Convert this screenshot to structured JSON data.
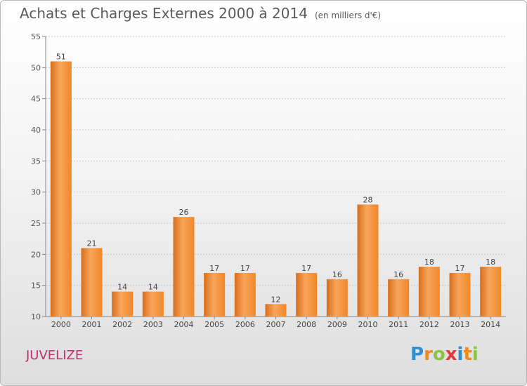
{
  "title": "Achats et Charges Externes 2000 à 2014",
  "unit_note": "(en milliers d'€)",
  "commune": "JUVELIZE",
  "logo": {
    "text": "Proxiti",
    "letters": [
      "P",
      "r",
      "o",
      "x",
      "i",
      "t",
      "i"
    ],
    "colors": [
      "#2f8fce",
      "#f08a1c",
      "#8bc53f",
      "#e53935",
      "#2f8fce",
      "#f08a1c",
      "#8bc53f"
    ]
  },
  "chart_data": {
    "type": "bar",
    "categories": [
      "2000",
      "2001",
      "2002",
      "2003",
      "2004",
      "2005",
      "2006",
      "2007",
      "2008",
      "2009",
      "2010",
      "2011",
      "2012",
      "2013",
      "2014"
    ],
    "values": [
      51,
      21,
      14,
      14,
      26,
      17,
      17,
      12,
      17,
      16,
      28,
      16,
      18,
      17,
      18
    ],
    "ylim": [
      10,
      55
    ],
    "yticks": [
      10,
      15,
      20,
      25,
      30,
      35,
      40,
      45,
      50,
      55
    ],
    "grid": true,
    "bar_color": "#f0872a",
    "bar_color_light": "#f9a65a",
    "bar_color_dark": "#d86e1c"
  }
}
